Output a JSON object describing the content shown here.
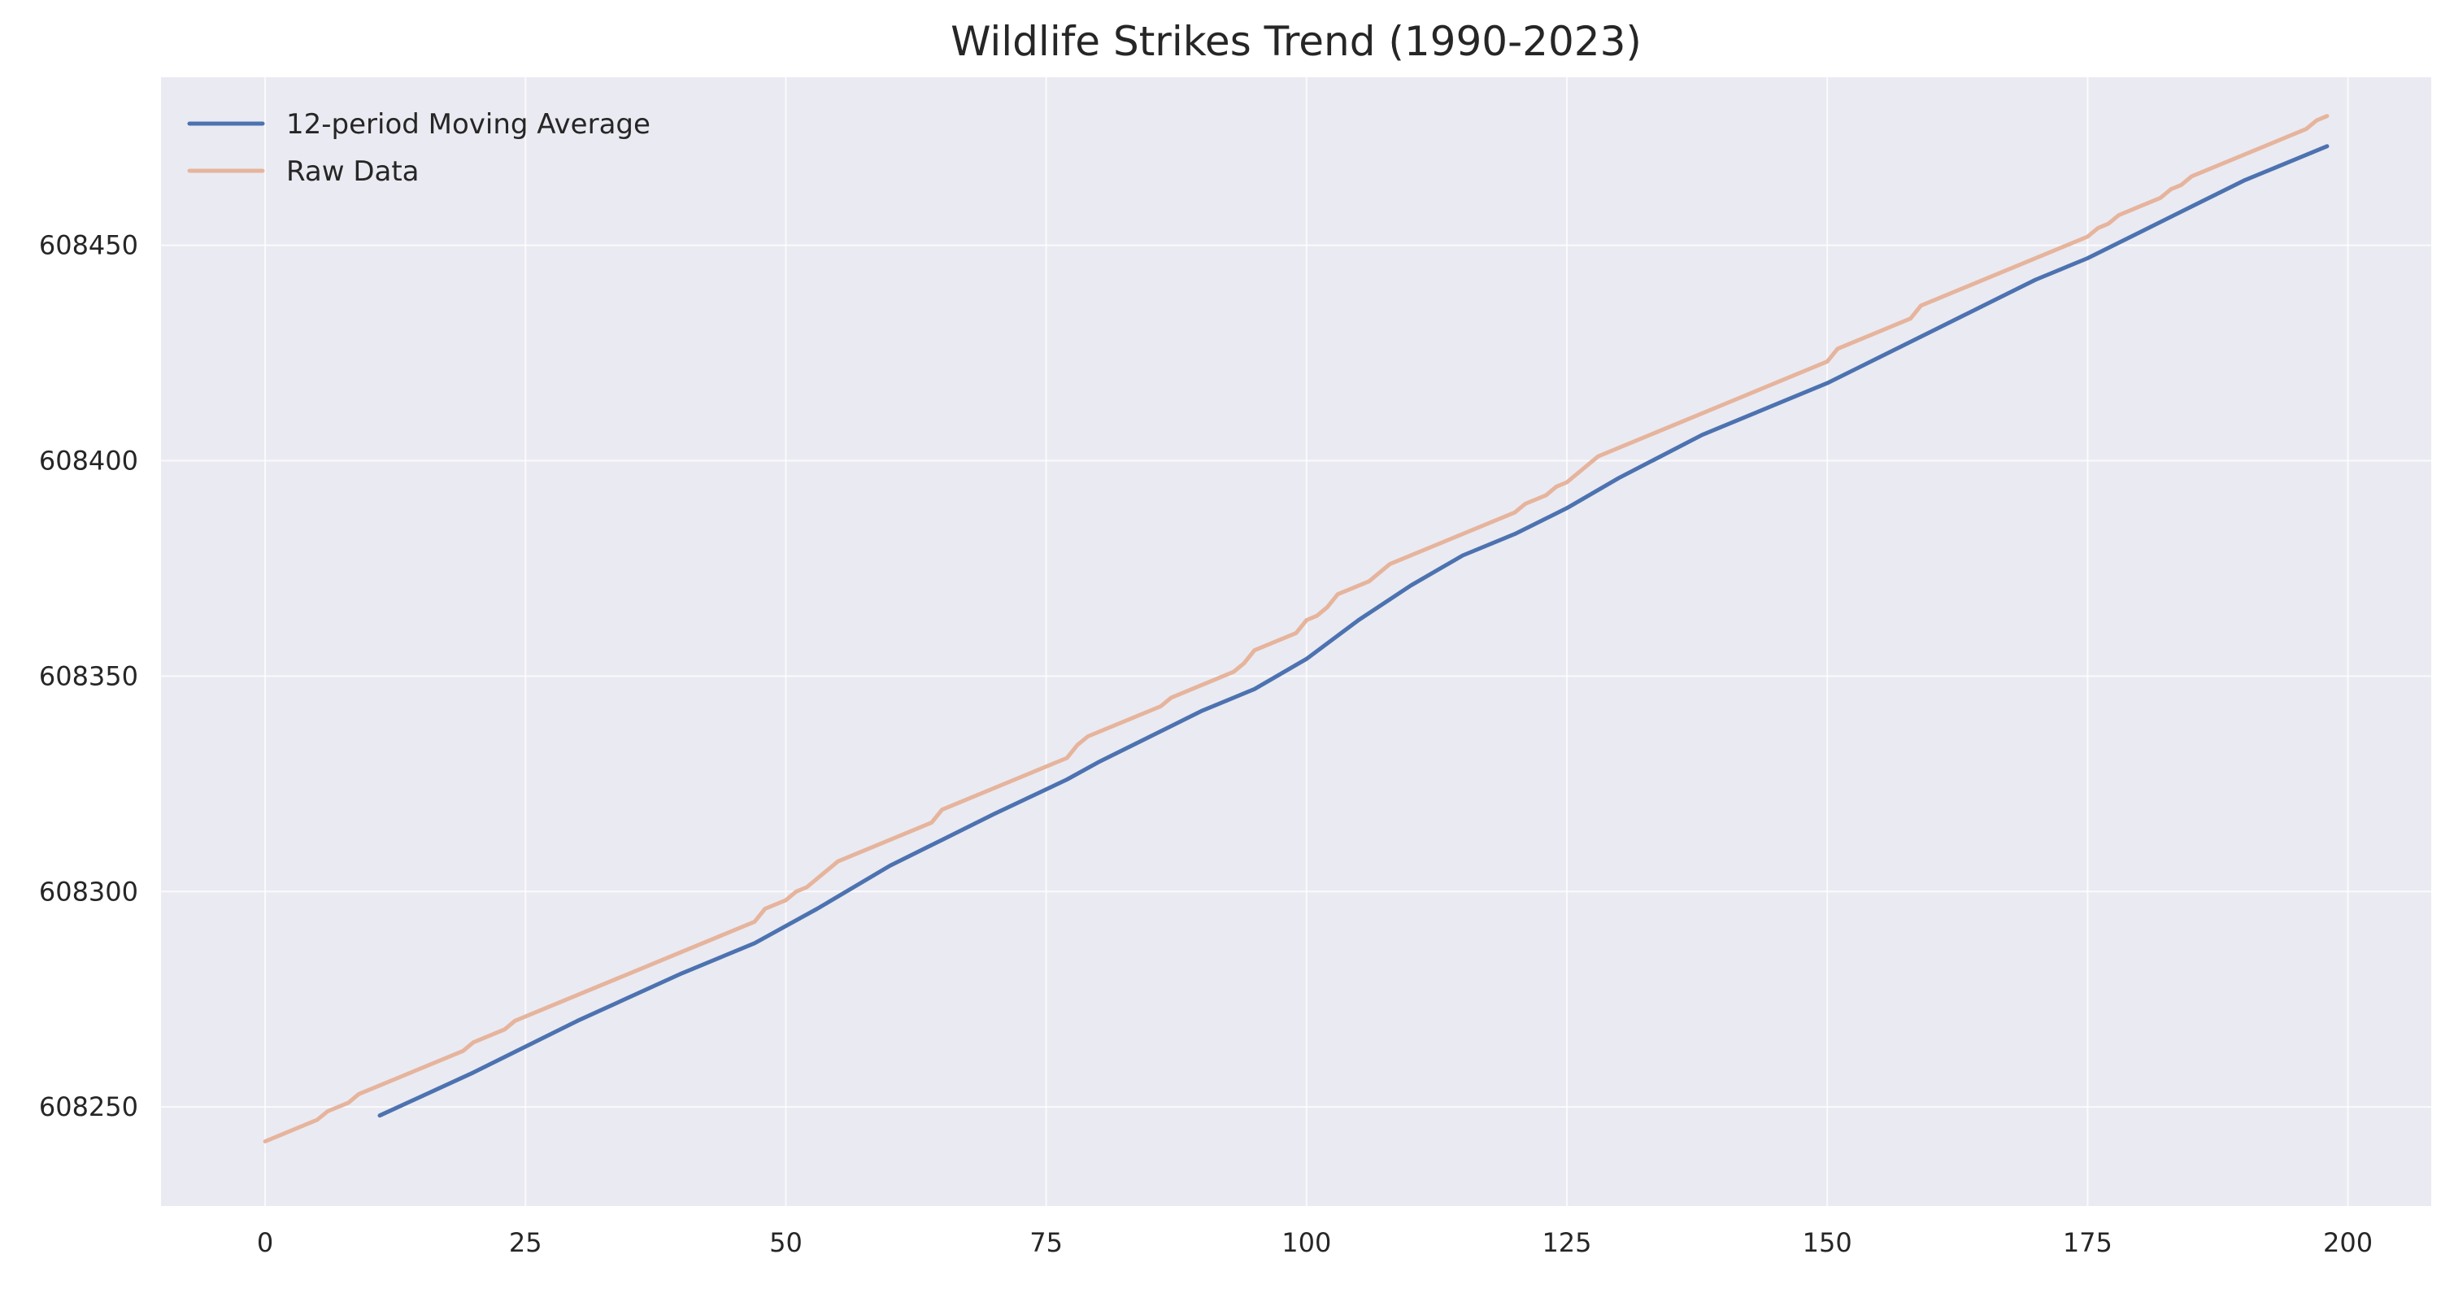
{
  "chart_data": {
    "type": "line",
    "title": "Wildlife Strikes Trend (1990-2023)",
    "xlabel": "",
    "ylabel": "",
    "xlim": [
      -10,
      208
    ],
    "ylim": [
      608227,
      608489
    ],
    "x_ticks": [
      0,
      25,
      50,
      75,
      100,
      125,
      150,
      175,
      200
    ],
    "y_ticks": [
      608250,
      608300,
      608350,
      608400,
      608450
    ],
    "grid": true,
    "legend_position": "top-left",
    "series": [
      {
        "name": "12-period Moving Average",
        "color": "#4c72b0",
        "x": [
          11,
          20,
          30,
          40,
          47,
          53,
          60,
          65,
          70,
          77,
          80,
          90,
          95,
          100,
          105,
          110,
          115,
          120,
          125,
          130,
          138,
          145,
          150,
          155,
          160,
          165,
          170,
          175,
          180,
          185,
          190,
          195,
          198
        ],
        "y": [
          608248,
          608258,
          608270,
          608281,
          608288,
          608296,
          608306,
          608312,
          608318,
          608326,
          608330,
          608342,
          608347,
          608354,
          608363,
          608371,
          608378,
          608383,
          608389,
          608396,
          608406,
          608413,
          608418,
          608424,
          608430,
          608436,
          608442,
          608447,
          608453,
          608459,
          608465,
          608470,
          608473
        ]
      },
      {
        "name": "Raw Data",
        "color": "#e6b49c",
        "x": [
          0,
          5,
          6,
          8,
          9,
          19,
          20,
          23,
          24,
          47,
          48,
          50,
          51,
          52,
          55,
          64,
          65,
          77,
          78,
          79,
          86,
          87,
          93,
          94,
          95,
          99,
          100,
          101,
          102,
          103,
          104,
          106,
          107,
          108,
          120,
          121,
          123,
          124,
          125,
          128,
          150,
          151,
          158,
          159,
          175,
          176,
          177,
          178,
          182,
          183,
          184,
          185,
          196,
          197,
          198
        ],
        "y": [
          608242,
          608247,
          608249,
          608251,
          608253,
          608263,
          608265,
          608268,
          608270,
          608293,
          608296,
          608298,
          608300,
          608301,
          608307,
          608316,
          608319,
          608331,
          608334,
          608336,
          608343,
          608345,
          608351,
          608353,
          608356,
          608360,
          608363,
          608364,
          608366,
          608369,
          608370,
          608372,
          608374,
          608376,
          608388,
          608390,
          608392,
          608394,
          608395,
          608401,
          608423,
          608426,
          608433,
          608436,
          608452,
          608454,
          608455,
          608457,
          608461,
          608463,
          608464,
          608466,
          608477,
          608479,
          608480
        ]
      }
    ]
  }
}
